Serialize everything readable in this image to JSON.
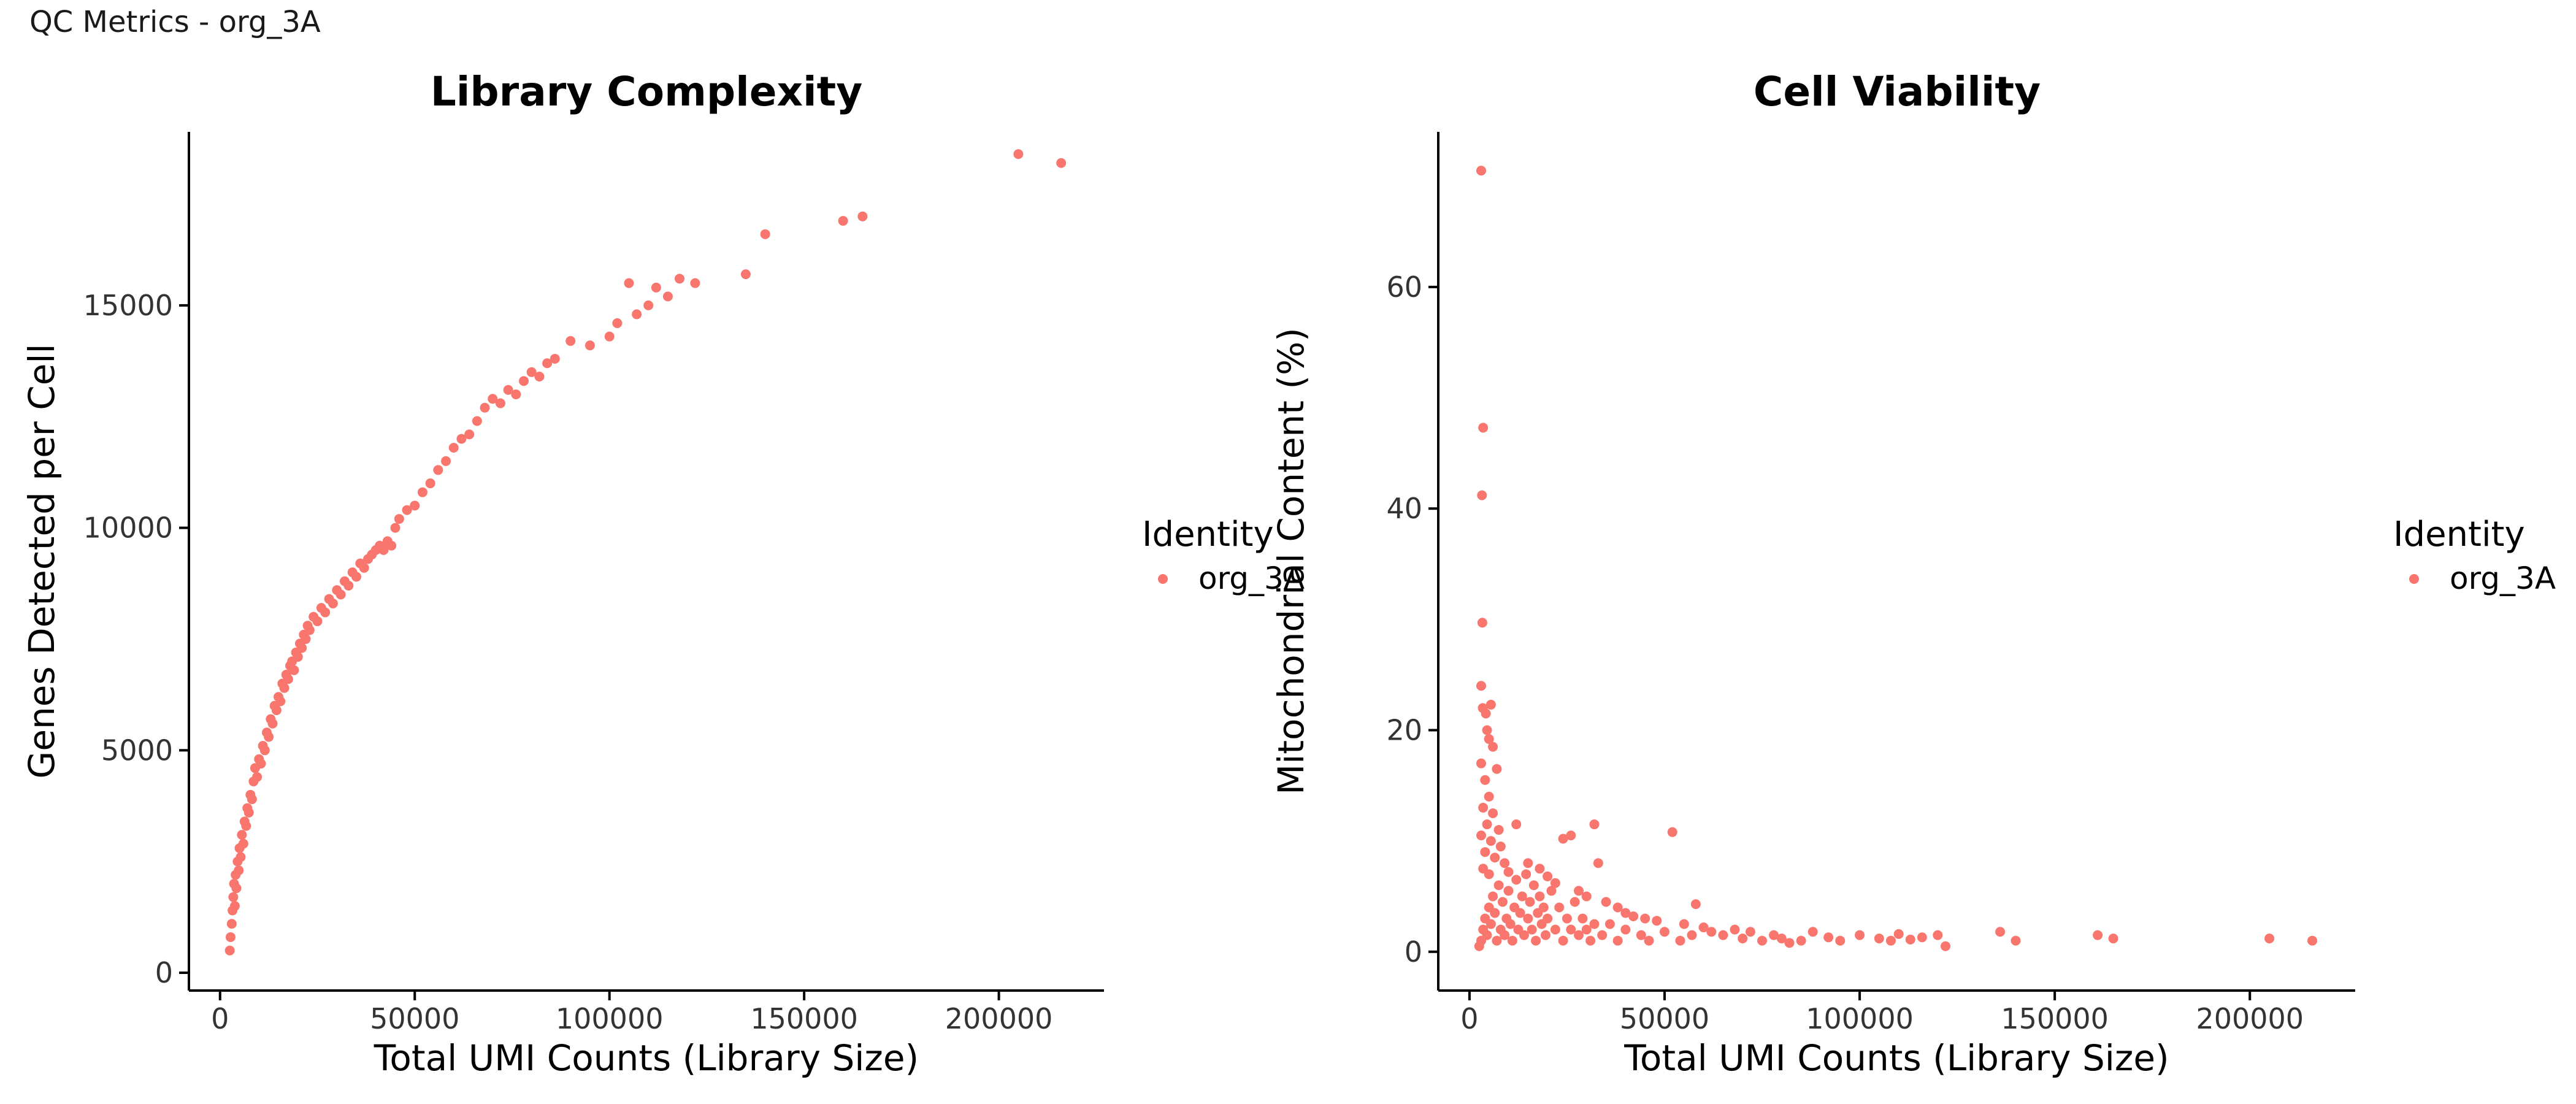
{
  "page_title": "QC Metrics - org_3A",
  "colors": {
    "point": "#F8766D",
    "axis": "#000000",
    "text": "#1a1a1a"
  },
  "chart_data": [
    {
      "type": "scatter",
      "title": "Library Complexity",
      "xlabel": "Total UMI Counts (Library Size)",
      "ylabel": "Genes Detected per Cell",
      "xlim": [
        -8000,
        227000
      ],
      "ylim": [
        -400,
        18900
      ],
      "xticks": [
        0,
        50000,
        100000,
        150000,
        200000
      ],
      "yticks": [
        0,
        5000,
        10000,
        15000
      ],
      "grid": false,
      "legend": {
        "title": "Identity",
        "entries": [
          "org_3A"
        ],
        "position": "right"
      },
      "series": [
        {
          "name": "org_3A",
          "points": [
            [
              2500,
              500
            ],
            [
              2700,
              800
            ],
            [
              3000,
              1100
            ],
            [
              3200,
              1400
            ],
            [
              3400,
              1700
            ],
            [
              3600,
              2000
            ],
            [
              3800,
              1500
            ],
            [
              4000,
              2200
            ],
            [
              4200,
              1900
            ],
            [
              4500,
              2500
            ],
            [
              4800,
              2300
            ],
            [
              5000,
              2800
            ],
            [
              5300,
              2600
            ],
            [
              5600,
              3100
            ],
            [
              6000,
              2900
            ],
            [
              6300,
              3400
            ],
            [
              6700,
              3300
            ],
            [
              7000,
              3700
            ],
            [
              7400,
              3600
            ],
            [
              7800,
              4000
            ],
            [
              8200,
              3900
            ],
            [
              8600,
              4300
            ],
            [
              9000,
              4600
            ],
            [
              9500,
              4400
            ],
            [
              10000,
              4800
            ],
            [
              10500,
              4700
            ],
            [
              11000,
              5100
            ],
            [
              11500,
              5000
            ],
            [
              12000,
              5400
            ],
            [
              12500,
              5300
            ],
            [
              13000,
              5700
            ],
            [
              13500,
              5600
            ],
            [
              14000,
              6000
            ],
            [
              14500,
              5900
            ],
            [
              15000,
              6200
            ],
            [
              15500,
              6100
            ],
            [
              16000,
              6500
            ],
            [
              16500,
              6400
            ],
            [
              17000,
              6700
            ],
            [
              17500,
              6600
            ],
            [
              18000,
              6900
            ],
            [
              18500,
              7000
            ],
            [
              19000,
              6800
            ],
            [
              19500,
              7200
            ],
            [
              20000,
              7100
            ],
            [
              20500,
              7400
            ],
            [
              21000,
              7300
            ],
            [
              21500,
              7600
            ],
            [
              22000,
              7500
            ],
            [
              22500,
              7800
            ],
            [
              23000,
              7700
            ],
            [
              24000,
              8000
            ],
            [
              25000,
              7900
            ],
            [
              26000,
              8200
            ],
            [
              27000,
              8100
            ],
            [
              28000,
              8400
            ],
            [
              29000,
              8300
            ],
            [
              30000,
              8600
            ],
            [
              31000,
              8500
            ],
            [
              32000,
              8800
            ],
            [
              33000,
              8700
            ],
            [
              34000,
              9000
            ],
            [
              35000,
              8900
            ],
            [
              36000,
              9200
            ],
            [
              37000,
              9100
            ],
            [
              38000,
              9300
            ],
            [
              39000,
              9400
            ],
            [
              40000,
              9500
            ],
            [
              41000,
              9600
            ],
            [
              42000,
              9500
            ],
            [
              43000,
              9700
            ],
            [
              44000,
              9600
            ],
            [
              45000,
              10000
            ],
            [
              46000,
              10200
            ],
            [
              48000,
              10400
            ],
            [
              50000,
              10500
            ],
            [
              52000,
              10800
            ],
            [
              54000,
              11000
            ],
            [
              56000,
              11300
            ],
            [
              58000,
              11500
            ],
            [
              60000,
              11800
            ],
            [
              62000,
              12000
            ],
            [
              64000,
              12100
            ],
            [
              66000,
              12400
            ],
            [
              68000,
              12700
            ],
            [
              70000,
              12900
            ],
            [
              72000,
              12800
            ],
            [
              74000,
              13100
            ],
            [
              76000,
              13000
            ],
            [
              78000,
              13300
            ],
            [
              80000,
              13500
            ],
            [
              82000,
              13400
            ],
            [
              84000,
              13700
            ],
            [
              86000,
              13800
            ],
            [
              90000,
              14200
            ],
            [
              95000,
              14100
            ],
            [
              100000,
              14300
            ],
            [
              102000,
              14600
            ],
            [
              105000,
              15500
            ],
            [
              107000,
              14800
            ],
            [
              110000,
              15000
            ],
            [
              112000,
              15400
            ],
            [
              115000,
              15200
            ],
            [
              118000,
              15600
            ],
            [
              122000,
              15500
            ],
            [
              135000,
              15700
            ],
            [
              140000,
              16600
            ],
            [
              160000,
              16900
            ],
            [
              165000,
              17000
            ],
            [
              205000,
              18400
            ],
            [
              216000,
              18200
            ]
          ]
        }
      ]
    },
    {
      "type": "scatter",
      "title": "Cell Viability",
      "xlabel": "Total UMI Counts (Library Size)",
      "ylabel": "Mitochondrial Content (%)",
      "xlim": [
        -8000,
        227000
      ],
      "ylim": [
        -3.5,
        74
      ],
      "xticks": [
        0,
        50000,
        100000,
        150000,
        200000
      ],
      "yticks": [
        0,
        20,
        40,
        60
      ],
      "grid": false,
      "legend": {
        "title": "Identity",
        "entries": [
          "org_3A"
        ],
        "position": "right"
      },
      "series": [
        {
          "name": "org_3A",
          "points": [
            [
              3000,
              70.5
            ],
            [
              3500,
              47.3
            ],
            [
              3200,
              41.2
            ],
            [
              3300,
              29.7
            ],
            [
              3000,
              24.0
            ],
            [
              3400,
              22.0
            ],
            [
              4200,
              21.5
            ],
            [
              5500,
              22.3
            ],
            [
              4500,
              20.0
            ],
            [
              5000,
              19.2
            ],
            [
              6000,
              18.5
            ],
            [
              7000,
              16.5
            ],
            [
              3000,
              17.0
            ],
            [
              4000,
              15.5
            ],
            [
              5000,
              14.0
            ],
            [
              3500,
              13.0
            ],
            [
              6000,
              12.5
            ],
            [
              4500,
              11.5
            ],
            [
              7500,
              11.0
            ],
            [
              3000,
              10.5
            ],
            [
              5500,
              10.0
            ],
            [
              8000,
              9.5
            ],
            [
              4000,
              9.0
            ],
            [
              6500,
              8.5
            ],
            [
              9000,
              8.0
            ],
            [
              3500,
              7.5
            ],
            [
              10000,
              7.2
            ],
            [
              5000,
              7.0
            ],
            [
              12000,
              11.5
            ],
            [
              15000,
              8.0
            ],
            [
              18000,
              7.5
            ],
            [
              20000,
              6.8
            ],
            [
              22000,
              6.2
            ],
            [
              24000,
              10.2
            ],
            [
              26000,
              10.5
            ],
            [
              28000,
              5.5
            ],
            [
              30000,
              5.0
            ],
            [
              32000,
              11.5
            ],
            [
              33000,
              8.0
            ],
            [
              35000,
              4.5
            ],
            [
              38000,
              4.0
            ],
            [
              40000,
              3.5
            ],
            [
              42000,
              3.2
            ],
            [
              45000,
              3.0
            ],
            [
              48000,
              2.8
            ],
            [
              52000,
              10.8
            ],
            [
              55000,
              2.5
            ],
            [
              58000,
              4.3
            ],
            [
              60000,
              2.2
            ],
            [
              62000,
              1.8
            ],
            [
              65000,
              1.5
            ],
            [
              68000,
              2.0
            ],
            [
              70000,
              1.2
            ],
            [
              72000,
              1.8
            ],
            [
              75000,
              1.0
            ],
            [
              78000,
              1.5
            ],
            [
              80000,
              1.2
            ],
            [
              82000,
              0.8
            ],
            [
              85000,
              1.0
            ],
            [
              88000,
              1.8
            ],
            [
              92000,
              1.3
            ],
            [
              95000,
              1.0
            ],
            [
              100000,
              1.5
            ],
            [
              105000,
              1.2
            ],
            [
              108000,
              1.0
            ],
            [
              110000,
              1.6
            ],
            [
              113000,
              1.1
            ],
            [
              116000,
              1.3
            ],
            [
              120000,
              1.5
            ],
            [
              122000,
              0.5
            ],
            [
              136000,
              1.8
            ],
            [
              140000,
              1.0
            ],
            [
              161000,
              1.5
            ],
            [
              165000,
              1.2
            ],
            [
              205000,
              1.2
            ],
            [
              216000,
              1.0
            ],
            [
              2500,
              0.5
            ],
            [
              3000,
              1.0
            ],
            [
              3500,
              2.0
            ],
            [
              4000,
              3.0
            ],
            [
              4500,
              1.5
            ],
            [
              5000,
              4.0
            ],
            [
              5500,
              2.5
            ],
            [
              6000,
              5.0
            ],
            [
              6500,
              3.5
            ],
            [
              7000,
              1.0
            ],
            [
              7500,
              6.0
            ],
            [
              8000,
              2.0
            ],
            [
              8500,
              4.5
            ],
            [
              9000,
              1.5
            ],
            [
              9500,
              3.0
            ],
            [
              10000,
              5.5
            ],
            [
              10500,
              2.5
            ],
            [
              11000,
              1.0
            ],
            [
              11500,
              4.0
            ],
            [
              12000,
              6.5
            ],
            [
              12500,
              2.0
            ],
            [
              13000,
              3.5
            ],
            [
              13500,
              5.0
            ],
            [
              14000,
              1.5
            ],
            [
              14500,
              7.0
            ],
            [
              15000,
              3.0
            ],
            [
              15500,
              4.5
            ],
            [
              16000,
              2.0
            ],
            [
              16500,
              6.0
            ],
            [
              17000,
              1.0
            ],
            [
              17500,
              3.5
            ],
            [
              18000,
              5.0
            ],
            [
              18500,
              2.5
            ],
            [
              19000,
              4.0
            ],
            [
              19500,
              1.5
            ],
            [
              20000,
              3.0
            ],
            [
              21000,
              5.5
            ],
            [
              22000,
              2.0
            ],
            [
              23000,
              4.0
            ],
            [
              24000,
              1.0
            ],
            [
              25000,
              3.0
            ],
            [
              26000,
              2.0
            ],
            [
              27000,
              4.5
            ],
            [
              28000,
              1.5
            ],
            [
              29000,
              3.0
            ],
            [
              30000,
              2.0
            ],
            [
              31000,
              1.0
            ],
            [
              32000,
              2.5
            ],
            [
              34000,
              1.5
            ],
            [
              36000,
              2.5
            ],
            [
              38000,
              1.0
            ],
            [
              40000,
              2.0
            ],
            [
              44000,
              1.5
            ],
            [
              46000,
              1.0
            ],
            [
              50000,
              1.8
            ],
            [
              54000,
              1.0
            ],
            [
              57000,
              1.5
            ]
          ]
        }
      ]
    }
  ]
}
